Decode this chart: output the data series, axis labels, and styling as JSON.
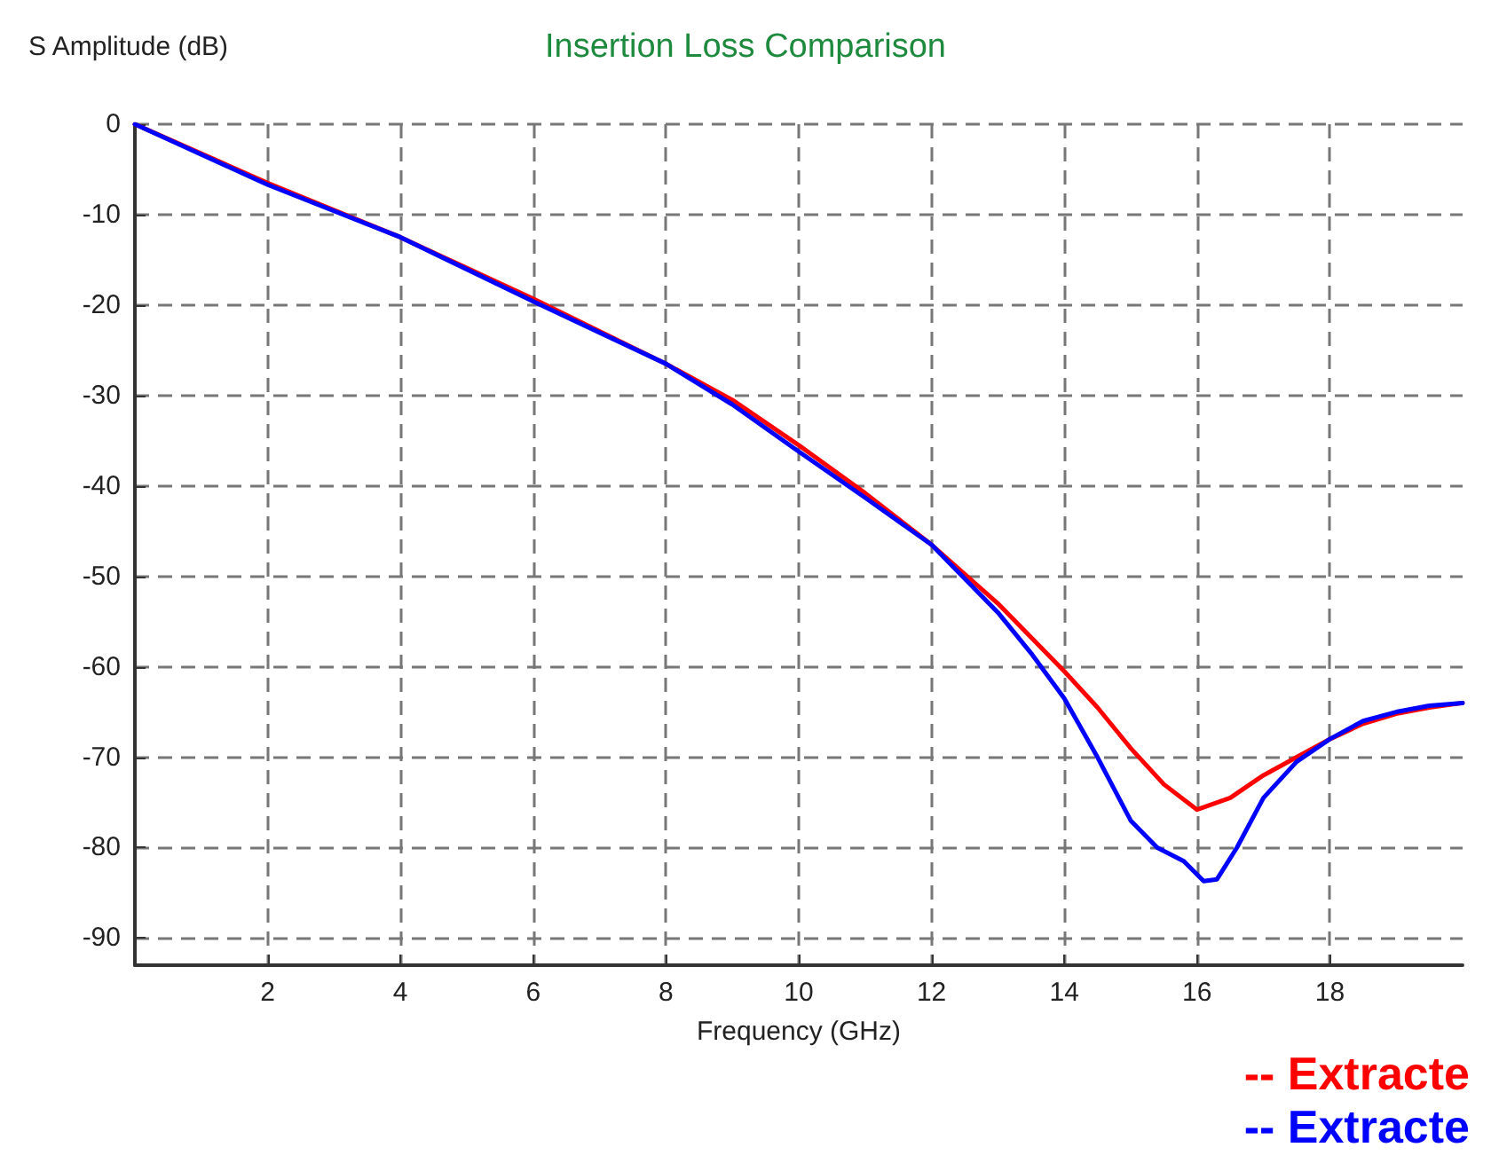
{
  "chart_data": {
    "type": "line",
    "title": "Insertion Loss Comparison",
    "xlabel": "Frequency (GHz)",
    "ylabel": "S Amplitude (dB)",
    "xlim": [
      0,
      20
    ],
    "xticks": [
      2,
      4,
      6,
      8,
      10,
      12,
      14,
      16,
      18
    ],
    "ylim": [
      -93,
      0
    ],
    "yticks": [
      0,
      -10,
      -20,
      -30,
      -40,
      -50,
      -60,
      -70,
      -80,
      -90
    ],
    "grid": true,
    "legend": "bottom right",
    "marker": "none",
    "line_style": "solid",
    "series": [
      {
        "name": "-- Extracte",
        "color": "#ff0000",
        "x": [
          0,
          2,
          4,
          6,
          8,
          9,
          10,
          11,
          12,
          13,
          14,
          14.5,
          15,
          15.5,
          16,
          16.5,
          17,
          17.5,
          18,
          18.5,
          19,
          19.5,
          20
        ],
        "values": [
          0,
          -6.5,
          -12.5,
          -19.3,
          -26.5,
          -30.5,
          -35.5,
          -40.8,
          -46.5,
          -53,
          -60.5,
          -64.5,
          -69,
          -73,
          -75.8,
          -74.5,
          -72,
          -70,
          -68,
          -66.3,
          -65.2,
          -64.5,
          -64
        ]
      },
      {
        "name": "-- Extracte",
        "color": "#0000ff",
        "x": [
          0,
          2,
          4,
          6,
          8,
          9,
          10,
          11,
          12,
          13,
          13.5,
          14,
          14.5,
          15,
          15.4,
          15.8,
          16.1,
          16.3,
          16.6,
          17,
          17.5,
          18,
          18.5,
          19,
          19.5,
          20
        ],
        "values": [
          0,
          -6.7,
          -12.5,
          -19.6,
          -26.5,
          -31,
          -36.2,
          -41.3,
          -46.5,
          -54,
          -58.5,
          -63.5,
          -70,
          -77,
          -80,
          -81.5,
          -83.7,
          -83.5,
          -80,
          -74.5,
          -70.5,
          -68,
          -66,
          -65,
          -64.3,
          -64
        ]
      }
    ]
  }
}
